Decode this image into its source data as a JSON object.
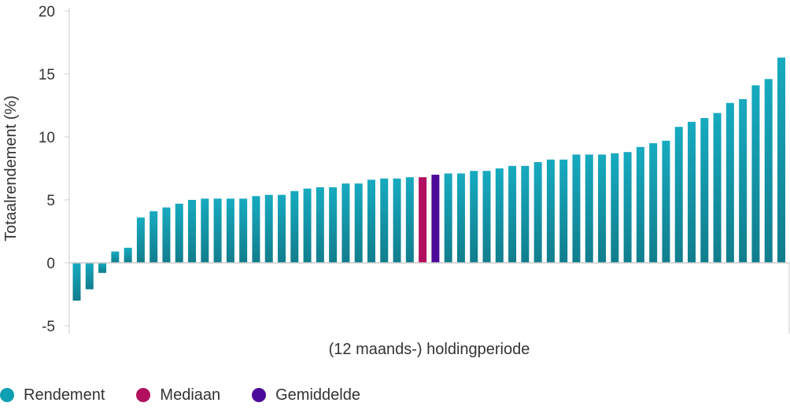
{
  "chart_data": {
    "type": "bar",
    "xlabel": "(12 maands-) holdingperiode",
    "ylabel": "Totaalrendement (%)",
    "ylim": [
      -5,
      20
    ],
    "yticks": [
      "20",
      "15",
      "10",
      "5",
      "0",
      "-5"
    ],
    "grid": false,
    "legend_position": "bottom-left",
    "series": [
      {
        "name": "Rendement",
        "color": "#0e9fb3"
      },
      {
        "name": "Mediaan",
        "color": "#b0105e"
      },
      {
        "name": "Gemiddelde",
        "color": "#4b0a9a"
      }
    ],
    "values": [
      -3.0,
      -2.1,
      -0.8,
      0.9,
      1.2,
      3.6,
      4.1,
      4.4,
      4.7,
      5.0,
      5.1,
      5.1,
      5.1,
      5.1,
      5.3,
      5.4,
      5.4,
      5.7,
      5.9,
      6.0,
      6.0,
      6.3,
      6.3,
      6.6,
      6.7,
      6.7,
      6.8,
      6.8,
      7.0,
      7.1,
      7.1,
      7.3,
      7.3,
      7.5,
      7.7,
      7.7,
      8.0,
      8.2,
      8.2,
      8.6,
      8.6,
      8.6,
      8.7,
      8.8,
      9.2,
      9.5,
      9.7,
      10.8,
      11.2,
      11.5,
      11.9,
      12.7,
      13.0,
      14.1,
      14.6,
      16.3
    ],
    "highlights": [
      {
        "index": 27,
        "series": "Mediaan"
      },
      {
        "index": 28,
        "series": "Gemiddelde"
      }
    ]
  }
}
